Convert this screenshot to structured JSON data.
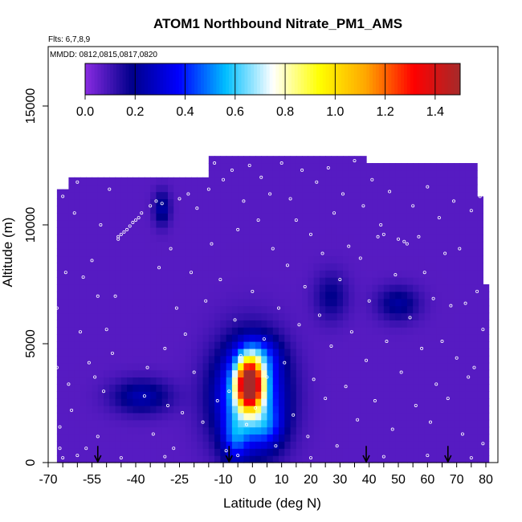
{
  "chart_data": {
    "type": "heatmap",
    "title": "ATOM1 Northbound Nitrate_PM1_AMS",
    "flights_label": "Flts: 6,7,8,9",
    "dates_label": "MMDD: 0812,0815,0817,0820",
    "xlabel": "Latitude (deg N)",
    "ylabel": "Altitude (m)",
    "xlim": [
      -70,
      80
    ],
    "ylim": [
      0,
      17500
    ],
    "x_ticks": [
      -70,
      -55,
      -40,
      -25,
      -10,
      0,
      10,
      20,
      30,
      40,
      50,
      60,
      70,
      80
    ],
    "x_minor_step": 5,
    "y_ticks": [
      0,
      5000,
      10000,
      15000
    ],
    "colorbar": {
      "min": 0.0,
      "max": 1.5,
      "ticks": [
        "0.0",
        "0.2",
        "0.4",
        "0.6",
        "0.8",
        "1.0",
        "1.2",
        "1.4"
      ],
      "colors": [
        "#8a2be2",
        "#00008b",
        "#0000ff",
        "#00bfff",
        "#ffffff",
        "#ffff00",
        "#ffa500",
        "#ff0000",
        "#a52a2a"
      ]
    },
    "background_value": 0.07,
    "coverage_profile": [
      {
        "lat": -67,
        "alt": 11500
      },
      {
        "lat": -62,
        "alt": 11500
      },
      {
        "lat": -62,
        "alt": 12000
      },
      {
        "lat": -15,
        "alt": 12000
      },
      {
        "lat": -15,
        "alt": 12900
      },
      {
        "lat": 40,
        "alt": 12900
      },
      {
        "lat": 40,
        "alt": 12600
      },
      {
        "lat": 77,
        "alt": 12600
      },
      {
        "lat": 77,
        "alt": 11200
      },
      {
        "lat": 79,
        "alt": 11200
      },
      {
        "lat": 79,
        "alt": 7500
      },
      {
        "lat": 80,
        "alt": 7500
      }
    ],
    "hotspots": [
      {
        "lat": -1,
        "alt": 3300,
        "value": 1.3,
        "lat_spread": 3,
        "alt_spread": 700
      },
      {
        "lat": -1,
        "alt": 2800,
        "value": 0.55,
        "lat_spread": 8,
        "alt_spread": 1500
      },
      {
        "lat": 2,
        "alt": 4500,
        "value": 0.2,
        "lat_spread": 5,
        "alt_spread": 600
      },
      {
        "lat": -38,
        "alt": 2800,
        "value": 0.18,
        "lat_spread": 7,
        "alt_spread": 500
      },
      {
        "lat": -31,
        "alt": 10700,
        "value": 0.17,
        "lat_spread": 2,
        "alt_spread": 500
      },
      {
        "lat": 50,
        "alt": 6700,
        "value": 0.15,
        "lat_spread": 5,
        "alt_spread": 500
      },
      {
        "lat": -6,
        "alt": 1000,
        "value": 0.22,
        "lat_spread": 3,
        "alt_spread": 700
      },
      {
        "lat": 5,
        "alt": 1500,
        "value": 0.16,
        "lat_spread": 4,
        "alt_spread": 600
      },
      {
        "lat": 27,
        "alt": 7000,
        "value": 0.12,
        "lat_spread": 4,
        "alt_spread": 700
      }
    ],
    "profile_latitudes": [
      -53,
      -8,
      39,
      67
    ],
    "sample_points": [
      [
        -68,
        9000
      ],
      [
        -67,
        6500
      ],
      [
        -67,
        4000
      ],
      [
        -66,
        1500
      ],
      [
        -66,
        600
      ],
      [
        -65,
        11200
      ],
      [
        -64,
        8000
      ],
      [
        -63,
        3300
      ],
      [
        -62,
        2200
      ],
      [
        -61,
        10500
      ],
      [
        -60,
        11800
      ],
      [
        -59,
        5500
      ],
      [
        -58,
        7800
      ],
      [
        -57,
        600
      ],
      [
        -56,
        4200
      ],
      [
        -55,
        8500
      ],
      [
        -54,
        3600
      ],
      [
        -53,
        7000
      ],
      [
        -53,
        1100
      ],
      [
        -52,
        10000
      ],
      [
        -51,
        3000
      ],
      [
        -50,
        5600
      ],
      [
        -49,
        11500
      ],
      [
        -48,
        4600
      ],
      [
        -47,
        7000
      ],
      [
        -46,
        9400
      ],
      [
        -46,
        9500
      ],
      [
        -45,
        9600
      ],
      [
        -44,
        9700
      ],
      [
        -43,
        9800
      ],
      [
        -42,
        9950
      ],
      [
        -41,
        10100
      ],
      [
        -40,
        10200
      ],
      [
        -39,
        10300
      ],
      [
        -38,
        10500
      ],
      [
        -37,
        2800
      ],
      [
        -36,
        4000
      ],
      [
        -35,
        10800
      ],
      [
        -34,
        1200
      ],
      [
        -33,
        11000
      ],
      [
        -32,
        8200
      ],
      [
        -31,
        10900
      ],
      [
        -30,
        4800
      ],
      [
        -29,
        2400
      ],
      [
        -28,
        9000
      ],
      [
        -27,
        600
      ],
      [
        -26,
        6500
      ],
      [
        -25,
        11100
      ],
      [
        -24,
        2100
      ],
      [
        -23,
        5400
      ],
      [
        -22,
        11300
      ],
      [
        -21,
        8000
      ],
      [
        -20,
        3800
      ],
      [
        -19,
        10700
      ],
      [
        -18,
        12100
      ],
      [
        -17,
        1700
      ],
      [
        -16,
        6800
      ],
      [
        -15,
        11500
      ],
      [
        -14,
        9200
      ],
      [
        -13,
        12600
      ],
      [
        -12,
        2600
      ],
      [
        -11,
        7700
      ],
      [
        -10,
        11900
      ],
      [
        -9,
        500
      ],
      [
        -8,
        3000
      ],
      [
        -7,
        12300
      ],
      [
        -6,
        6000
      ],
      [
        -5,
        9800
      ],
      [
        -4,
        4500
      ],
      [
        -3,
        11000
      ],
      [
        -2,
        1600
      ],
      [
        -1,
        12500
      ],
      [
        0,
        7200
      ],
      [
        1,
        2300
      ],
      [
        2,
        10200
      ],
      [
        3,
        12000
      ],
      [
        4,
        5200
      ],
      [
        5,
        3600
      ],
      [
        6,
        11300
      ],
      [
        7,
        9000
      ],
      [
        8,
        700
      ],
      [
        9,
        6500
      ],
      [
        10,
        12600
      ],
      [
        11,
        4200
      ],
      [
        12,
        8300
      ],
      [
        13,
        11100
      ],
      [
        14,
        2000
      ],
      [
        15,
        10200
      ],
      [
        16,
        5800
      ],
      [
        17,
        12300
      ],
      [
        18,
        7400
      ],
      [
        19,
        1100
      ],
      [
        20,
        9600
      ],
      [
        21,
        3500
      ],
      [
        22,
        11800
      ],
      [
        23,
        6200
      ],
      [
        24,
        8800
      ],
      [
        25,
        2700
      ],
      [
        26,
        12400
      ],
      [
        27,
        4900
      ],
      [
        28,
        10500
      ],
      [
        29,
        700
      ],
      [
        30,
        7700
      ],
      [
        31,
        11300
      ],
      [
        32,
        3200
      ],
      [
        33,
        9100
      ],
      [
        34,
        5500
      ],
      [
        35,
        12700
      ],
      [
        36,
        1800
      ],
      [
        37,
        8600
      ],
      [
        38,
        10800
      ],
      [
        39,
        4300
      ],
      [
        40,
        6800
      ],
      [
        41,
        11900
      ],
      [
        42,
        2600
      ],
      [
        43,
        9500
      ],
      [
        44,
        10000
      ],
      [
        45,
        9600
      ],
      [
        46,
        5100
      ],
      [
        47,
        11400
      ],
      [
        48,
        1400
      ],
      [
        49,
        7900
      ],
      [
        50,
        9400
      ],
      [
        51,
        3800
      ],
      [
        52,
        9300
      ],
      [
        53,
        9200
      ],
      [
        54,
        6100
      ],
      [
        55,
        10800
      ],
      [
        56,
        2400
      ],
      [
        57,
        9500
      ],
      [
        58,
        4800
      ],
      [
        59,
        8000
      ],
      [
        60,
        11600
      ],
      [
        61,
        1700
      ],
      [
        62,
        6900
      ],
      [
        63,
        3300
      ],
      [
        64,
        10300
      ],
      [
        65,
        5100
      ],
      [
        66,
        8800
      ],
      [
        67,
        2700
      ],
      [
        68,
        6600
      ],
      [
        69,
        11000
      ],
      [
        70,
        4400
      ],
      [
        71,
        9000
      ],
      [
        72,
        1200
      ],
      [
        73,
        6700
      ],
      [
        74,
        3600
      ],
      [
        75,
        10600
      ],
      [
        76,
        4000
      ],
      [
        77,
        7200
      ],
      [
        78,
        11200
      ],
      [
        79,
        5600
      ],
      [
        79,
        800
      ],
      [
        -65,
        200
      ],
      [
        -60,
        300
      ],
      [
        -45,
        200
      ],
      [
        -30,
        250
      ],
      [
        -5,
        300
      ],
      [
        20,
        200
      ],
      [
        45,
        250
      ],
      [
        60,
        300
      ],
      [
        75,
        200
      ]
    ]
  }
}
